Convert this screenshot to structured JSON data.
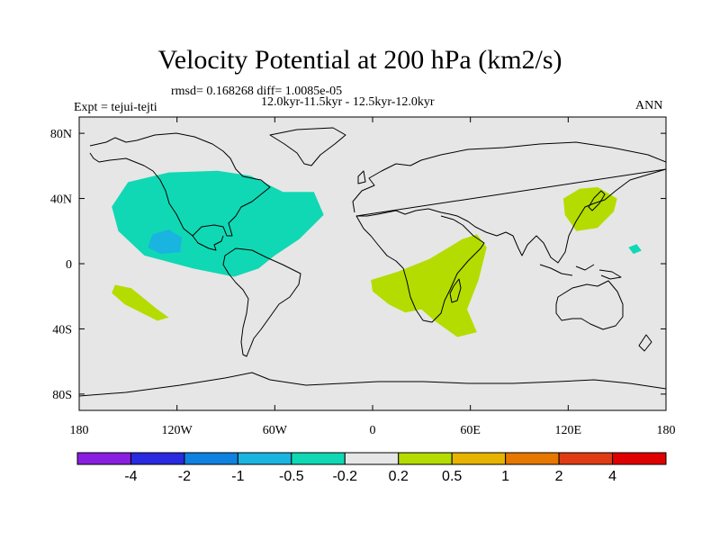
{
  "title": "Velocity Potential at 200 hPa (km2/s)",
  "stats": "rmsd= 0.168268 diff= 1.0085e-05",
  "periods": "12.0kyr-11.5kyr - 12.5kyr-12.0kyr",
  "experiment": "Expt = tejui-tejti",
  "season": "ANN",
  "chart_data": {
    "type": "heatmap",
    "projection": "cylindrical-equidistant",
    "lon_range": [
      -180,
      180
    ],
    "lat_range": [
      -90,
      90
    ],
    "x_ticks": [
      {
        "lon": -180,
        "label": "180"
      },
      {
        "lon": -120,
        "label": "120W"
      },
      {
        "lon": -60,
        "label": "60W"
      },
      {
        "lon": 0,
        "label": "0"
      },
      {
        "lon": 60,
        "label": "60E"
      },
      {
        "lon": 120,
        "label": "120E"
      },
      {
        "lon": 180,
        "label": "180"
      }
    ],
    "y_ticks": [
      {
        "lat": 80,
        "label": "80N"
      },
      {
        "lat": 40,
        "label": "40N"
      },
      {
        "lat": 0,
        "label": "0"
      },
      {
        "lat": -40,
        "label": "40S"
      },
      {
        "lat": -80,
        "label": "80S"
      }
    ],
    "colorbar": {
      "labels": [
        "-4",
        "-2",
        "-1",
        "-0.5",
        "-0.2",
        "0.2",
        "0.5",
        "1",
        "2",
        "4"
      ],
      "colors": [
        "#8a1ee0",
        "#2a2ae0",
        "#0f82e0",
        "#1ab4e0",
        "#10d8b4",
        "#e6e6e6",
        "#b4dc00",
        "#e6b400",
        "#e67800",
        "#e03c14",
        "#e00000"
      ]
    },
    "regions": [
      {
        "name": "north-pacific-america-negative",
        "value_range": "-0.5 to -0.2",
        "color": "#10d8b4",
        "points": [
          [
            -150,
            50
          ],
          [
            -125,
            56
          ],
          [
            -95,
            57
          ],
          [
            -75,
            54
          ],
          [
            -55,
            44
          ],
          [
            -36,
            44
          ],
          [
            -30,
            30
          ],
          [
            -45,
            15
          ],
          [
            -60,
            5
          ],
          [
            -70,
            -3
          ],
          [
            -85,
            -8
          ],
          [
            -110,
            -3
          ],
          [
            -140,
            5
          ],
          [
            -156,
            20
          ],
          [
            -160,
            35
          ]
        ]
      },
      {
        "name": "east-pacific-core",
        "value_range": "-1 to -0.5",
        "color": "#1ab4e0",
        "points": [
          [
            -135,
            18
          ],
          [
            -125,
            21
          ],
          [
            -117,
            16
          ],
          [
            -118,
            7
          ],
          [
            -130,
            6
          ],
          [
            -138,
            10
          ]
        ]
      },
      {
        "name": "west-pacific-negative",
        "value_range": "-0.5 to -0.2",
        "color": "#10d8b4",
        "points": [
          [
            157,
            10
          ],
          [
            162,
            12
          ],
          [
            165,
            8
          ],
          [
            160,
            6
          ]
        ]
      },
      {
        "name": "south-pacific-positive",
        "value_range": "0.2 to 0.5",
        "color": "#b4dc00",
        "points": [
          [
            -158,
            -13
          ],
          [
            -148,
            -15
          ],
          [
            -132,
            -28
          ],
          [
            -125,
            -33
          ],
          [
            -132,
            -35
          ],
          [
            -152,
            -25
          ],
          [
            -160,
            -18
          ]
        ]
      },
      {
        "name": "africa-indian-ocean-positive",
        "value_range": "0.2 to 0.5",
        "color": "#b4dc00",
        "points": [
          [
            -1,
            -10
          ],
          [
            15,
            -5
          ],
          [
            35,
            3
          ],
          [
            55,
            15
          ],
          [
            64,
            18
          ],
          [
            70,
            10
          ],
          [
            65,
            -10
          ],
          [
            58,
            -28
          ],
          [
            64,
            -42
          ],
          [
            52,
            -45
          ],
          [
            38,
            -35
          ],
          [
            30,
            -28
          ],
          [
            20,
            -30
          ],
          [
            10,
            -25
          ],
          [
            0,
            -17
          ]
        ]
      },
      {
        "name": "east-asia-positive",
        "value_range": "0.2 to 0.5",
        "color": "#b4dc00",
        "points": [
          [
            117,
            40
          ],
          [
            127,
            46
          ],
          [
            138,
            47
          ],
          [
            150,
            40
          ],
          [
            148,
            32
          ],
          [
            138,
            22
          ],
          [
            125,
            20
          ],
          [
            118,
            30
          ]
        ]
      }
    ]
  }
}
